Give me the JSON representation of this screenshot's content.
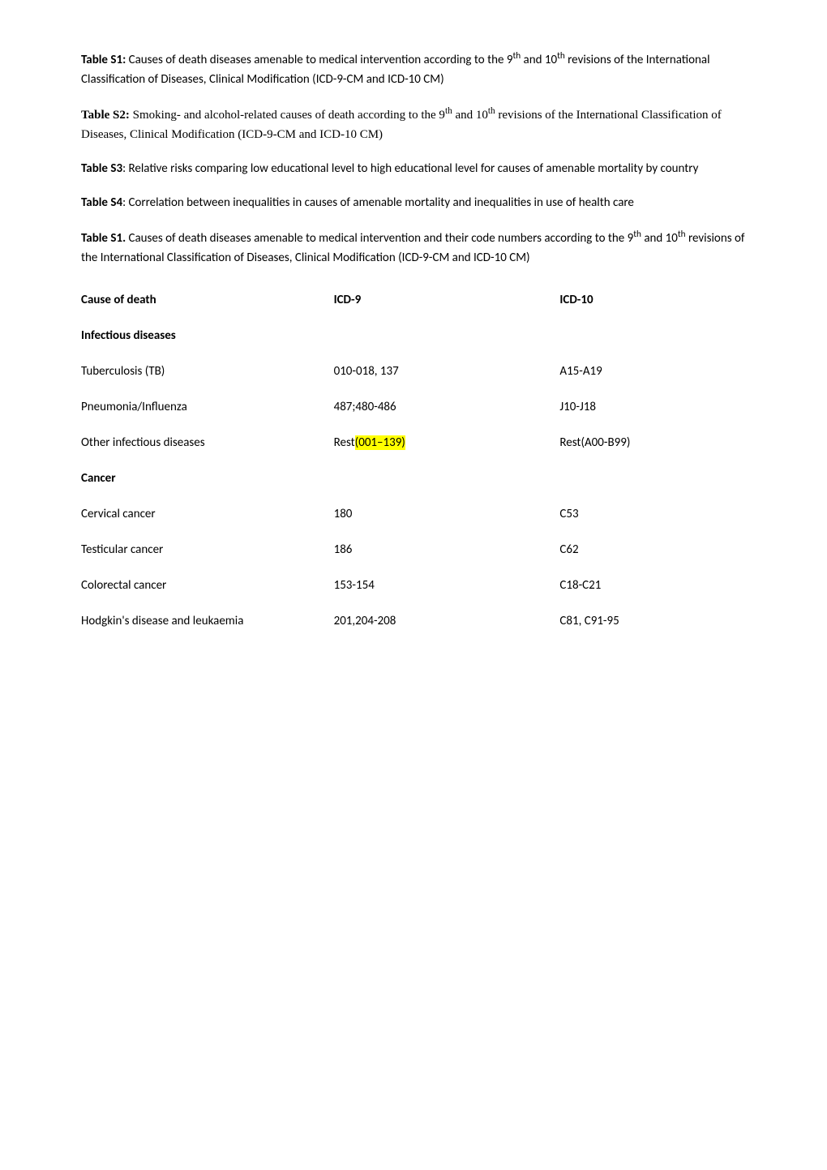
{
  "intro": {
    "p1_label": "Table S1:",
    "p1_text": " Causes of death diseases amenable to medical intervention according to the 9",
    "p1_sup1": "th",
    "p1_text2": " and 10",
    "p1_sup2": "th",
    "p1_text3": " revisions of the International Classification of Diseases, Clinical Modification (ICD-9-CM and ICD-10 CM)",
    "p2_label": "Table S2:",
    "p2_text": " Smoking- and alcohol-related causes of death according to the 9",
    "p2_sup1": "th",
    "p2_text2": " and 10",
    "p2_sup2": "th",
    "p2_text3": " revisions of the International Classification of Diseases, Clinical Modification (ICD-9-CM and ICD-10 CM)",
    "p3_label": "Table S3",
    "p3_text": ": Relative risks comparing low educational level to high educational level for causes of amenable mortality by country",
    "p4_label": "Table S4",
    "p4_text": ": Correlation between inequalities in causes of amenable mortality and inequalities in use of health care",
    "p5_label": "Table S1.",
    "p5_text": " Causes of death diseases amenable to medical intervention and their code numbers according to the 9",
    "p5_sup1": "th",
    "p5_text2": " and 10",
    "p5_sup2": "th",
    "p5_text3": " revisions of the International Classification of Diseases, Clinical Modification (ICD-9-CM and ICD-10 CM)"
  },
  "table": {
    "header": {
      "c1": "Cause of death",
      "c2": "ICD-9",
      "c3": "ICD-10"
    },
    "sections": [
      {
        "title": "Infectious diseases",
        "rows": [
          {
            "c1": "Tuberculosis (TB)",
            "c2": "010-018, 137",
            "c3": "A15-A19"
          },
          {
            "c1": "Pneumonia/Influenza",
            "c2": "487;480-486",
            "c3": "J10-J18"
          },
          {
            "c1": "Other infectious diseases",
            "c2_pre": "Rest",
            "c2_hl": "(001–139)",
            "c3": "Rest(A00-B99)"
          }
        ]
      },
      {
        "title": "Cancer",
        "rows": [
          {
            "c1": "Cervical cancer",
            "c2": "180",
            "c3": "C53"
          },
          {
            "c1": "Testicular cancer",
            "c2": "186",
            "c3": "C62"
          },
          {
            "c1": "Colorectal cancer",
            "c2": "153-154",
            "c3": "C18-C21"
          },
          {
            "c1": "Hodgkin's disease and leukaemia",
            "c2": "201,204-208",
            "c3": "C81, C91-95"
          }
        ]
      }
    ]
  }
}
